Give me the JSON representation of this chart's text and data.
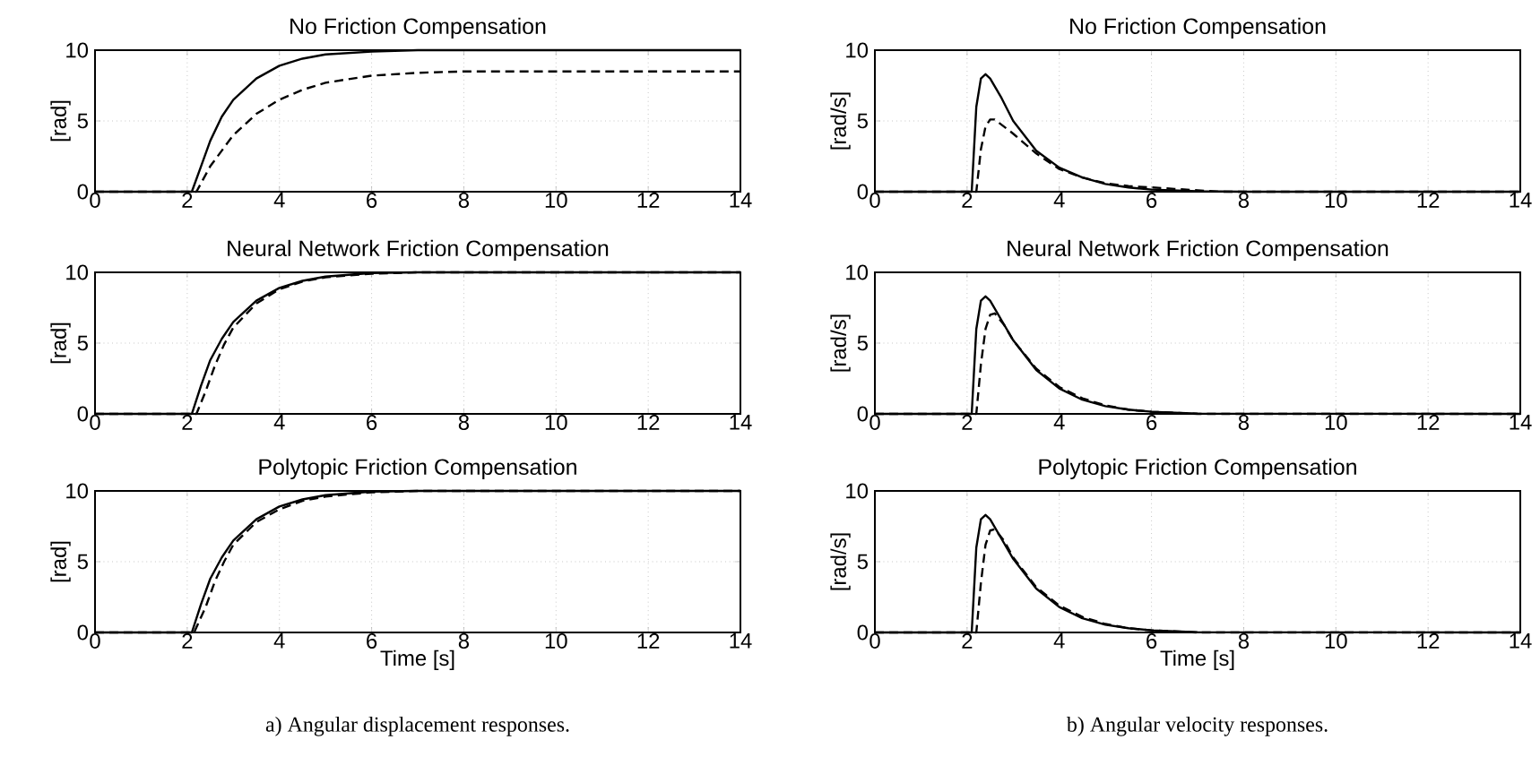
{
  "chart_data": [
    {
      "type": "line",
      "title": "No Friction Compensation",
      "ylabel": "[rad]",
      "xlim": [
        0,
        14
      ],
      "ylim": [
        0,
        10
      ],
      "xticks": [
        0,
        2,
        4,
        6,
        8,
        10,
        12,
        14
      ],
      "yticks": [
        0,
        5,
        10
      ],
      "grid": true,
      "series": [
        {
          "color": "#000000",
          "line_style": "solid",
          "x": [
            0,
            2.1,
            2.3,
            2.5,
            2.75,
            3,
            3.5,
            4,
            4.5,
            5,
            6,
            7,
            8,
            14
          ],
          "values": [
            0,
            0,
            1.8,
            3.6,
            5.3,
            6.5,
            8.0,
            8.9,
            9.4,
            9.7,
            9.9,
            10,
            10,
            10
          ]
        },
        {
          "color": "#000000",
          "line_style": "dashed",
          "x": [
            0,
            2.2,
            2.5,
            3,
            3.5,
            4,
            4.5,
            5,
            6,
            7,
            8,
            14
          ],
          "values": [
            0,
            0,
            1.8,
            4.0,
            5.5,
            6.5,
            7.2,
            7.7,
            8.2,
            8.4,
            8.5,
            8.5
          ]
        }
      ]
    },
    {
      "type": "line",
      "title": "No Friction Compensation",
      "ylabel": "[rad/s]",
      "xlim": [
        0,
        14
      ],
      "ylim": [
        0,
        10
      ],
      "xticks": [
        0,
        2,
        4,
        6,
        8,
        10,
        12,
        14
      ],
      "yticks": [
        0,
        5,
        10
      ],
      "grid": true,
      "series": [
        {
          "color": "#000000",
          "line_style": "solid",
          "x": [
            0,
            2.1,
            2.2,
            2.3,
            2.4,
            2.5,
            2.75,
            3,
            3.5,
            4,
            4.5,
            5,
            5.5,
            6,
            7,
            8,
            14
          ],
          "values": [
            0,
            0,
            6.0,
            8.0,
            8.3,
            8.0,
            6.6,
            5.0,
            2.9,
            1.7,
            1.0,
            0.55,
            0.3,
            0.15,
            0.03,
            0,
            0
          ]
        },
        {
          "color": "#000000",
          "line_style": "dashed",
          "x": [
            0,
            2.2,
            2.3,
            2.4,
            2.5,
            2.6,
            3,
            3.5,
            4,
            4.5,
            5,
            5.5,
            6,
            6.5,
            7,
            7.5,
            14
          ],
          "values": [
            0,
            0,
            3.0,
            4.6,
            5.1,
            5.1,
            4.1,
            2.7,
            1.6,
            1.0,
            0.6,
            0.4,
            0.3,
            0.2,
            0.1,
            0,
            0
          ]
        }
      ]
    },
    {
      "type": "line",
      "title": "Neural Network Friction Compensation",
      "ylabel": "[rad]",
      "xlim": [
        0,
        14
      ],
      "ylim": [
        0,
        10
      ],
      "xticks": [
        0,
        2,
        4,
        6,
        8,
        10,
        12,
        14
      ],
      "yticks": [
        0,
        5,
        10
      ],
      "grid": true,
      "series": [
        {
          "color": "#000000",
          "line_style": "solid",
          "x": [
            0,
            2.1,
            2.3,
            2.5,
            2.75,
            3,
            3.5,
            4,
            4.5,
            5,
            6,
            7,
            14
          ],
          "values": [
            0,
            0,
            2.0,
            3.8,
            5.3,
            6.5,
            8.0,
            8.9,
            9.4,
            9.7,
            9.95,
            10,
            10
          ]
        },
        {
          "color": "#000000",
          "line_style": "dashed",
          "x": [
            0,
            2.2,
            2.4,
            2.6,
            2.8,
            3,
            3.5,
            4,
            4.5,
            5,
            6,
            7,
            14
          ],
          "values": [
            0,
            0,
            1.6,
            3.4,
            4.9,
            6.1,
            7.8,
            8.8,
            9.35,
            9.65,
            9.9,
            10,
            10
          ]
        }
      ]
    },
    {
      "type": "line",
      "title": "Neural Network Friction Compensation",
      "ylabel": "[rad/s]",
      "xlim": [
        0,
        14
      ],
      "ylim": [
        0,
        10
      ],
      "xticks": [
        0,
        2,
        4,
        6,
        8,
        10,
        12,
        14
      ],
      "yticks": [
        0,
        5,
        10
      ],
      "grid": true,
      "series": [
        {
          "color": "#000000",
          "line_style": "solid",
          "x": [
            0,
            2.1,
            2.2,
            2.3,
            2.4,
            2.5,
            2.75,
            3,
            3.5,
            4,
            4.5,
            5,
            5.5,
            6,
            7,
            14
          ],
          "values": [
            0,
            0,
            6.0,
            8.0,
            8.3,
            8.0,
            6.6,
            5.2,
            3.1,
            1.8,
            1.0,
            0.55,
            0.3,
            0.15,
            0.02,
            0
          ]
        },
        {
          "color": "#000000",
          "line_style": "dashed",
          "x": [
            0,
            2.2,
            2.3,
            2.4,
            2.5,
            2.6,
            2.8,
            3,
            3.5,
            4,
            4.5,
            5,
            5.5,
            6,
            7,
            14
          ],
          "values": [
            0,
            0,
            3.5,
            6.0,
            7.0,
            7.1,
            6.3,
            5.2,
            3.2,
            1.9,
            1.1,
            0.6,
            0.3,
            0.15,
            0,
            0
          ]
        }
      ]
    },
    {
      "type": "line",
      "title": "Polytopic Friction Compensation",
      "xlabel": "Time [s]",
      "ylabel": "[rad]",
      "annotations": [
        "a) Angular displacement responses."
      ],
      "xlim": [
        0,
        14
      ],
      "ylim": [
        0,
        10
      ],
      "xticks": [
        0,
        2,
        4,
        6,
        8,
        10,
        12,
        14
      ],
      "yticks": [
        0,
        5,
        10
      ],
      "grid": true,
      "series": [
        {
          "color": "#000000",
          "line_style": "solid",
          "x": [
            0,
            2.1,
            2.3,
            2.5,
            2.75,
            3,
            3.5,
            4,
            4.5,
            5,
            6,
            7,
            14
          ],
          "values": [
            0,
            0,
            2.0,
            3.8,
            5.3,
            6.5,
            8.0,
            8.9,
            9.4,
            9.7,
            9.95,
            10,
            10
          ]
        },
        {
          "color": "#000000",
          "line_style": "dashed",
          "x": [
            0,
            2.15,
            2.4,
            2.6,
            2.8,
            3,
            3.5,
            4,
            4.5,
            5,
            6,
            7,
            14
          ],
          "values": [
            0,
            0,
            1.8,
            3.6,
            5.0,
            6.2,
            7.8,
            8.7,
            9.3,
            9.6,
            9.9,
            10,
            10
          ]
        }
      ]
    },
    {
      "type": "line",
      "title": "Polytopic Friction Compensation",
      "xlabel": "Time [s]",
      "ylabel": "[rad/s]",
      "annotations": [
        "b) Angular velocity responses."
      ],
      "xlim": [
        0,
        14
      ],
      "ylim": [
        0,
        10
      ],
      "xticks": [
        0,
        2,
        4,
        6,
        8,
        10,
        12,
        14
      ],
      "yticks": [
        0,
        5,
        10
      ],
      "grid": true,
      "series": [
        {
          "color": "#000000",
          "line_style": "solid",
          "x": [
            0,
            2.1,
            2.2,
            2.3,
            2.4,
            2.5,
            2.75,
            3,
            3.5,
            4,
            4.5,
            5,
            5.5,
            6,
            7,
            14
          ],
          "values": [
            0,
            0,
            6.0,
            8.0,
            8.3,
            8.0,
            6.6,
            5.2,
            3.1,
            1.8,
            1.0,
            0.55,
            0.3,
            0.15,
            0.02,
            0
          ]
        },
        {
          "color": "#000000",
          "line_style": "dashed",
          "x": [
            0,
            2.2,
            2.3,
            2.4,
            2.5,
            2.6,
            2.8,
            3,
            3.5,
            4,
            4.5,
            5,
            5.5,
            6,
            7,
            14
          ],
          "values": [
            0,
            0,
            3.5,
            6.2,
            7.2,
            7.3,
            6.5,
            5.3,
            3.2,
            1.9,
            1.1,
            0.6,
            0.3,
            0.15,
            0,
            0
          ]
        }
      ]
    }
  ]
}
